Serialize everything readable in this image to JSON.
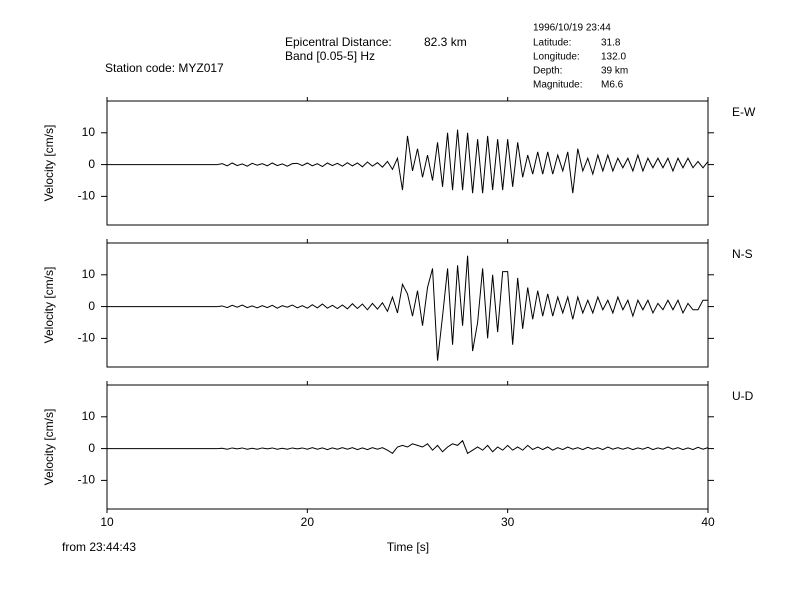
{
  "header": {
    "station": "Station code: MYZ017",
    "distance_label": "Epicentral Distance:",
    "distance": "82.3 km",
    "band": "Band [0.05-5] Hz",
    "datetime": "1996/10/19 23:44",
    "info": [
      {
        "label": "Latitude:",
        "value": "31.8"
      },
      {
        "label": "Longitude:",
        "value": "132.0"
      },
      {
        "label": "Depth:",
        "value": "39 km"
      },
      {
        "label": "Magnitude:",
        "value": "M6.6"
      }
    ],
    "start_time": "from 23:44:43"
  },
  "chart_data": [
    {
      "type": "line",
      "channel": "E-W",
      "ylabel": "Velocity [cm/s]",
      "xlim": [
        10,
        40
      ],
      "xticks": [
        10,
        20,
        30,
        40
      ],
      "ylim": [
        -19,
        20
      ],
      "yticks": [
        -10,
        0,
        10
      ],
      "x": [
        15.5,
        15.75,
        16,
        16.25,
        16.5,
        16.75,
        17,
        17.25,
        17.5,
        17.75,
        18,
        18.25,
        18.5,
        18.75,
        19,
        19.25,
        19.5,
        19.75,
        20,
        20.25,
        20.5,
        20.75,
        21,
        21.25,
        21.5,
        21.75,
        22,
        22.25,
        22.5,
        22.75,
        23,
        23.25,
        23.5,
        23.75,
        24,
        24.25,
        24.5,
        24.75,
        25,
        25.25,
        25.5,
        25.75,
        26,
        26.25,
        26.5,
        26.75,
        27,
        27.25,
        27.5,
        27.75,
        28,
        28.25,
        28.5,
        28.75,
        29,
        29.25,
        29.5,
        29.75,
        30,
        30.25,
        30.5,
        30.75,
        31,
        31.25,
        31.5,
        31.75,
        32,
        32.25,
        32.5,
        32.75,
        33,
        33.25,
        33.5,
        33.75,
        34,
        34.25,
        34.5,
        34.75,
        35,
        35.25,
        35.5,
        35.75,
        36,
        36.25,
        36.5,
        36.75,
        37,
        37.25,
        37.5,
        37.75,
        38,
        38.25,
        38.5,
        38.75,
        39,
        39.25,
        39.5,
        39.75,
        40
      ],
      "values": [
        0,
        0.3,
        -0.4,
        0.5,
        -0.3,
        0.2,
        -0.5,
        0.4,
        -0.2,
        0.3,
        -0.4,
        0.5,
        -0.3,
        0.2,
        -0.5,
        0.3,
        0.4,
        -0.3,
        0.5,
        -0.4,
        0.3,
        -0.6,
        0.5,
        -0.3,
        0.4,
        -0.5,
        0.6,
        -0.4,
        0.5,
        -0.7,
        0.8,
        -0.5,
        0.6,
        -0.8,
        1,
        -1.5,
        2,
        -8,
        9,
        -2,
        5,
        -4,
        3,
        -5,
        7,
        -7,
        10,
        -8,
        11,
        -8,
        10,
        -9,
        8,
        -9,
        9,
        -8,
        8,
        -8,
        8,
        -7,
        7,
        -4,
        3,
        -3,
        4,
        -3,
        4,
        -3,
        3,
        -2,
        4,
        -9,
        5,
        -2,
        2,
        -3,
        3,
        -2,
        3,
        -2,
        2,
        -1,
        2,
        -2,
        3,
        -2,
        2,
        -1,
        2,
        -1,
        2,
        -2,
        2,
        -1,
        2,
        -1,
        1,
        -1,
        1
      ]
    },
    {
      "type": "line",
      "channel": "N-S",
      "ylabel": "Velocity [cm/s]",
      "xlim": [
        10,
        40
      ],
      "xticks": [
        10,
        20,
        30,
        40
      ],
      "ylim": [
        -19,
        20
      ],
      "yticks": [
        -10,
        0,
        10
      ],
      "x": [
        15.5,
        15.75,
        16,
        16.25,
        16.5,
        16.75,
        17,
        17.25,
        17.5,
        17.75,
        18,
        18.25,
        18.5,
        18.75,
        19,
        19.25,
        19.5,
        19.75,
        20,
        20.25,
        20.5,
        20.75,
        21,
        21.25,
        21.5,
        21.75,
        22,
        22.25,
        22.5,
        22.75,
        23,
        23.25,
        23.5,
        23.75,
        24,
        24.25,
        24.5,
        24.75,
        25,
        25.25,
        25.5,
        25.75,
        26,
        26.25,
        26.5,
        26.75,
        27,
        27.25,
        27.5,
        27.75,
        28,
        28.25,
        28.5,
        28.75,
        29,
        29.25,
        29.5,
        29.75,
        30,
        30.25,
        30.5,
        30.75,
        31,
        31.25,
        31.5,
        31.75,
        32,
        32.25,
        32.5,
        32.75,
        33,
        33.25,
        33.5,
        33.75,
        34,
        34.25,
        34.5,
        34.75,
        35,
        35.25,
        35.5,
        35.75,
        36,
        36.25,
        36.5,
        36.75,
        37,
        37.25,
        37.5,
        37.75,
        38,
        38.25,
        38.5,
        38.75,
        39,
        39.25,
        39.5,
        39.75,
        40
      ],
      "values": [
        0,
        0.2,
        -0.3,
        0.4,
        -0.2,
        0.5,
        -0.3,
        0.2,
        -0.4,
        0.3,
        -0.3,
        0.4,
        -0.5,
        0.3,
        -0.2,
        0.5,
        -0.4,
        0.3,
        -0.5,
        0.6,
        -0.4,
        0.8,
        -0.5,
        0.4,
        -0.6,
        0.5,
        -0.7,
        0.9,
        -0.6,
        0.8,
        -1,
        1,
        -0.8,
        1.2,
        -1.5,
        3,
        -2,
        7,
        4,
        -3,
        5,
        -6,
        6,
        12,
        -17,
        -3,
        12,
        -12,
        13,
        -6,
        16,
        -14,
        -5,
        12,
        -10,
        10,
        -8,
        11,
        11,
        -12,
        9,
        -7,
        6,
        -4,
        5,
        -3,
        4,
        -3,
        3,
        -2,
        3,
        -4,
        3,
        -2,
        2,
        -2,
        3,
        -1,
        2,
        -2,
        3,
        -1,
        2,
        -3,
        2,
        -1,
        2,
        -2,
        1,
        -1,
        2,
        -1,
        2,
        -2,
        1,
        -1,
        -1,
        2,
        2
      ]
    },
    {
      "type": "line",
      "channel": "U-D",
      "ylabel": "Velocity [cm/s]",
      "xlabel": "Time [s]",
      "xlim": [
        10,
        40
      ],
      "xticks": [
        10,
        20,
        30,
        40
      ],
      "ylim": [
        -19,
        20
      ],
      "yticks": [
        -10,
        0,
        10
      ],
      "x": [
        15.5,
        15.75,
        16,
        16.25,
        16.5,
        16.75,
        17,
        17.25,
        17.5,
        17.75,
        18,
        18.25,
        18.5,
        18.75,
        19,
        19.25,
        19.5,
        19.75,
        20,
        20.25,
        20.5,
        20.75,
        21,
        21.25,
        21.5,
        21.75,
        22,
        22.25,
        22.5,
        22.75,
        23,
        23.25,
        23.5,
        23.75,
        24,
        24.25,
        24.5,
        24.75,
        25,
        25.25,
        25.5,
        25.75,
        26,
        26.25,
        26.5,
        26.75,
        27,
        27.25,
        27.5,
        27.75,
        28,
        28.25,
        28.5,
        28.75,
        29,
        29.25,
        29.5,
        29.75,
        30,
        30.25,
        30.5,
        30.75,
        31,
        31.25,
        31.5,
        31.75,
        32,
        32.25,
        32.5,
        32.75,
        33,
        33.25,
        33.5,
        33.75,
        34,
        34.25,
        34.5,
        34.75,
        35,
        35.25,
        35.5,
        35.75,
        36,
        36.25,
        36.5,
        36.75,
        37,
        37.25,
        37.5,
        37.75,
        38,
        38.25,
        38.5,
        38.75,
        39,
        39.25,
        39.5,
        39.75,
        40
      ],
      "values": [
        0,
        0.1,
        -0.2,
        0.2,
        -0.1,
        0.2,
        -0.2,
        0.1,
        -0.2,
        0.2,
        -0.1,
        0.2,
        -0.2,
        0.1,
        -0.2,
        0.2,
        -0.1,
        0.2,
        -0.2,
        0.3,
        -0.2,
        0.2,
        -0.3,
        0.2,
        -0.2,
        0.3,
        -0.2,
        0.3,
        -0.3,
        0.2,
        -0.3,
        0.3,
        -0.2,
        0.3,
        -0.5,
        -1.5,
        0.5,
        1,
        0.5,
        1.5,
        1,
        0.5,
        1.5,
        -0.5,
        1,
        -1,
        0.5,
        1.5,
        1,
        2.5,
        -1.5,
        -0.5,
        0.5,
        -0.5,
        1,
        -1,
        0.5,
        -0.5,
        1,
        -0.5,
        0.5,
        -0.5,
        1,
        -0.3,
        0.5,
        -0.3,
        0.5,
        -0.5,
        0.3,
        -0.3,
        0.5,
        -0.2,
        0.3,
        -0.3,
        0.4,
        -0.2,
        0.3,
        -0.3,
        0.5,
        -0.2,
        0.3,
        -0.2,
        0.3,
        -0.3,
        0.2,
        -0.2,
        0.4,
        -0.3,
        0.2,
        -0.2,
        0.5,
        -0.2,
        0.3,
        -0.3,
        0.2,
        -0.3,
        0.4,
        -0.2,
        0.3
      ]
    }
  ]
}
